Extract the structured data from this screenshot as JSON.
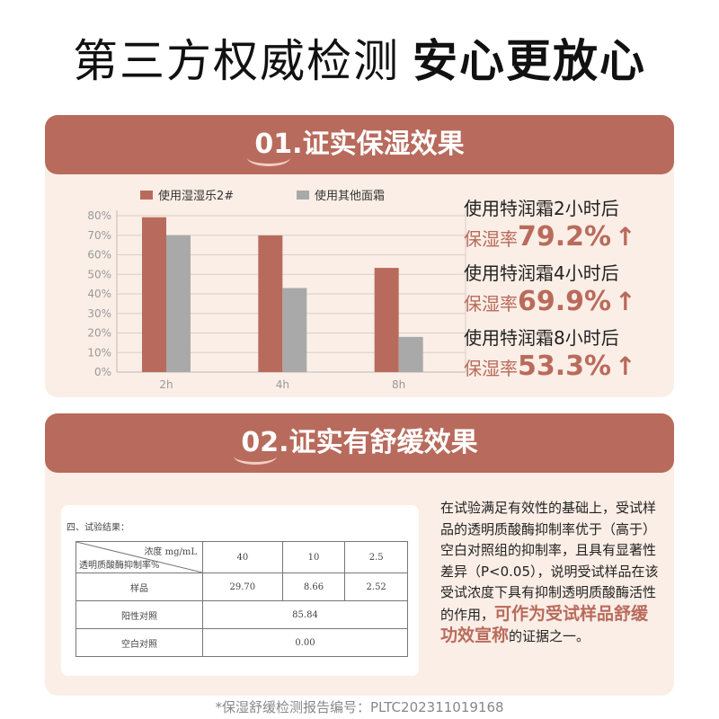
{
  "headline": {
    "thin": "第三方权威检测",
    "bold": "安心更放心"
  },
  "section1": {
    "num": "01",
    "title": ".证实保湿效果",
    "stats": [
      {
        "line1": "使用特润霜2小时后",
        "prefix": "保湿率",
        "value": "79.2%",
        "arrow": "↑"
      },
      {
        "line1": "使用特润霜4小时后",
        "prefix": "保湿率",
        "value": "69.9%",
        "arrow": "↑"
      },
      {
        "line1": "使用特润霜8小时后",
        "prefix": "保湿率",
        "value": "53.3%",
        "arrow": "↑"
      }
    ]
  },
  "chart_data": {
    "type": "bar",
    "categories": [
      "2h",
      "4h",
      "8h"
    ],
    "series": [
      {
        "name": "使用湿湿乐2#",
        "values": [
          79.2,
          69.9,
          53.3
        ],
        "color": "#b86b5c"
      },
      {
        "name": "使用其他面霜",
        "values": [
          70,
          43,
          18
        ],
        "color": "#a9a9a9"
      }
    ],
    "yticks": [
      "80%",
      "70%",
      "60%",
      "50%",
      "40%",
      "30%",
      "20%",
      "10%",
      "0%"
    ],
    "ylim": [
      0,
      80
    ],
    "title": "",
    "xlabel": "",
    "ylabel": "",
    "grid": true,
    "legend": "top"
  },
  "section2": {
    "num": "02",
    "title": ".证实有舒缓效果",
    "report": {
      "title": "四、试验结果：",
      "diag_top": "浓度 mg/mL",
      "diag_bottom": "透明质酸酶抑制率%",
      "concs": [
        "40",
        "10",
        "2.5"
      ],
      "sample_label": "样品",
      "sample_values": [
        "29.70",
        "8.66",
        "2.52"
      ],
      "positive_label": "阳性对照",
      "positive_value": "85.84",
      "blank_label": "空白对照",
      "blank_value": "0.00"
    },
    "desc_before": "在试验满足有效性的基础上，受试样品的透明质酸酶抑制率优于（高于）空白对照组的抑制率，且具有显著性差异（P<0.05），说明受试样品在该受试浓度下具有抑制透明质酸酶活性的作用，",
    "desc_highlight": "可作为受试样品舒缓功效宣称",
    "desc_after": "的证据之一。"
  },
  "footer": "*保湿舒缓检测报告编号：PLTC202311019168"
}
